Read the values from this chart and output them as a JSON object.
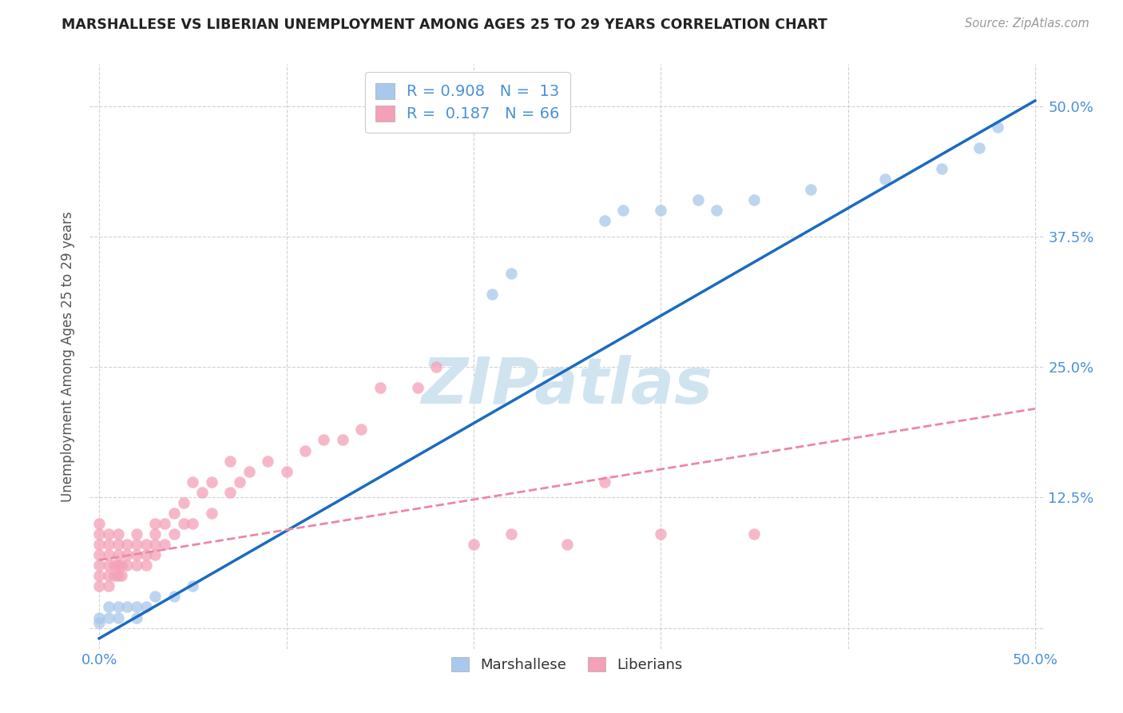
{
  "title": "MARSHALLESE VS LIBERIAN UNEMPLOYMENT AMONG AGES 25 TO 29 YEARS CORRELATION CHART",
  "source": "Source: ZipAtlas.com",
  "ylabel": "Unemployment Among Ages 25 to 29 years",
  "xlim": [
    -0.005,
    0.505
  ],
  "ylim": [
    -0.02,
    0.54
  ],
  "xticks": [
    0.0,
    0.1,
    0.2,
    0.3,
    0.4,
    0.5
  ],
  "yticks": [
    0.0,
    0.125,
    0.25,
    0.375,
    0.5
  ],
  "marshallese_color": "#a8c8ec",
  "liberian_color": "#f4a0b8",
  "marshallese_line_color": "#1a6bbf",
  "liberian_line_color": "#e888a8",
  "watermark": "ZIPatlas",
  "watermark_color": "#d0e4f0",
  "marshallese_x": [
    0.0,
    0.0,
    0.005,
    0.005,
    0.01,
    0.01,
    0.015,
    0.02,
    0.02,
    0.025,
    0.03,
    0.04,
    0.05,
    0.21,
    0.22,
    0.27,
    0.28,
    0.3,
    0.32,
    0.33,
    0.35,
    0.38,
    0.42,
    0.45,
    0.47,
    0.48
  ],
  "marshallese_y": [
    0.005,
    0.01,
    0.01,
    0.02,
    0.01,
    0.02,
    0.02,
    0.01,
    0.02,
    0.02,
    0.03,
    0.03,
    0.04,
    0.32,
    0.34,
    0.39,
    0.4,
    0.4,
    0.41,
    0.4,
    0.41,
    0.42,
    0.43,
    0.44,
    0.46,
    0.48
  ],
  "liberian_x": [
    0.0,
    0.0,
    0.0,
    0.0,
    0.0,
    0.0,
    0.0,
    0.005,
    0.005,
    0.005,
    0.005,
    0.005,
    0.005,
    0.008,
    0.008,
    0.01,
    0.01,
    0.01,
    0.01,
    0.01,
    0.012,
    0.012,
    0.015,
    0.015,
    0.015,
    0.02,
    0.02,
    0.02,
    0.02,
    0.025,
    0.025,
    0.025,
    0.03,
    0.03,
    0.03,
    0.03,
    0.035,
    0.035,
    0.04,
    0.04,
    0.045,
    0.045,
    0.05,
    0.05,
    0.055,
    0.06,
    0.06,
    0.07,
    0.07,
    0.075,
    0.08,
    0.09,
    0.1,
    0.11,
    0.12,
    0.13,
    0.14,
    0.15,
    0.17,
    0.18,
    0.2,
    0.22,
    0.25,
    0.27,
    0.3,
    0.35
  ],
  "liberian_y": [
    0.04,
    0.05,
    0.06,
    0.07,
    0.08,
    0.09,
    0.1,
    0.04,
    0.05,
    0.06,
    0.07,
    0.08,
    0.09,
    0.05,
    0.06,
    0.05,
    0.06,
    0.07,
    0.08,
    0.09,
    0.05,
    0.06,
    0.06,
    0.07,
    0.08,
    0.06,
    0.07,
    0.08,
    0.09,
    0.06,
    0.07,
    0.08,
    0.07,
    0.08,
    0.09,
    0.1,
    0.08,
    0.1,
    0.09,
    0.11,
    0.1,
    0.12,
    0.1,
    0.14,
    0.13,
    0.11,
    0.14,
    0.13,
    0.16,
    0.14,
    0.15,
    0.16,
    0.15,
    0.17,
    0.18,
    0.18,
    0.19,
    0.23,
    0.23,
    0.25,
    0.08,
    0.09,
    0.08,
    0.14,
    0.09,
    0.09
  ],
  "marshallese_line_x": [
    0.0,
    0.5
  ],
  "marshallese_line_y": [
    -0.01,
    0.505
  ],
  "liberian_line_x": [
    0.0,
    0.5
  ],
  "liberian_line_y": [
    0.065,
    0.21
  ]
}
